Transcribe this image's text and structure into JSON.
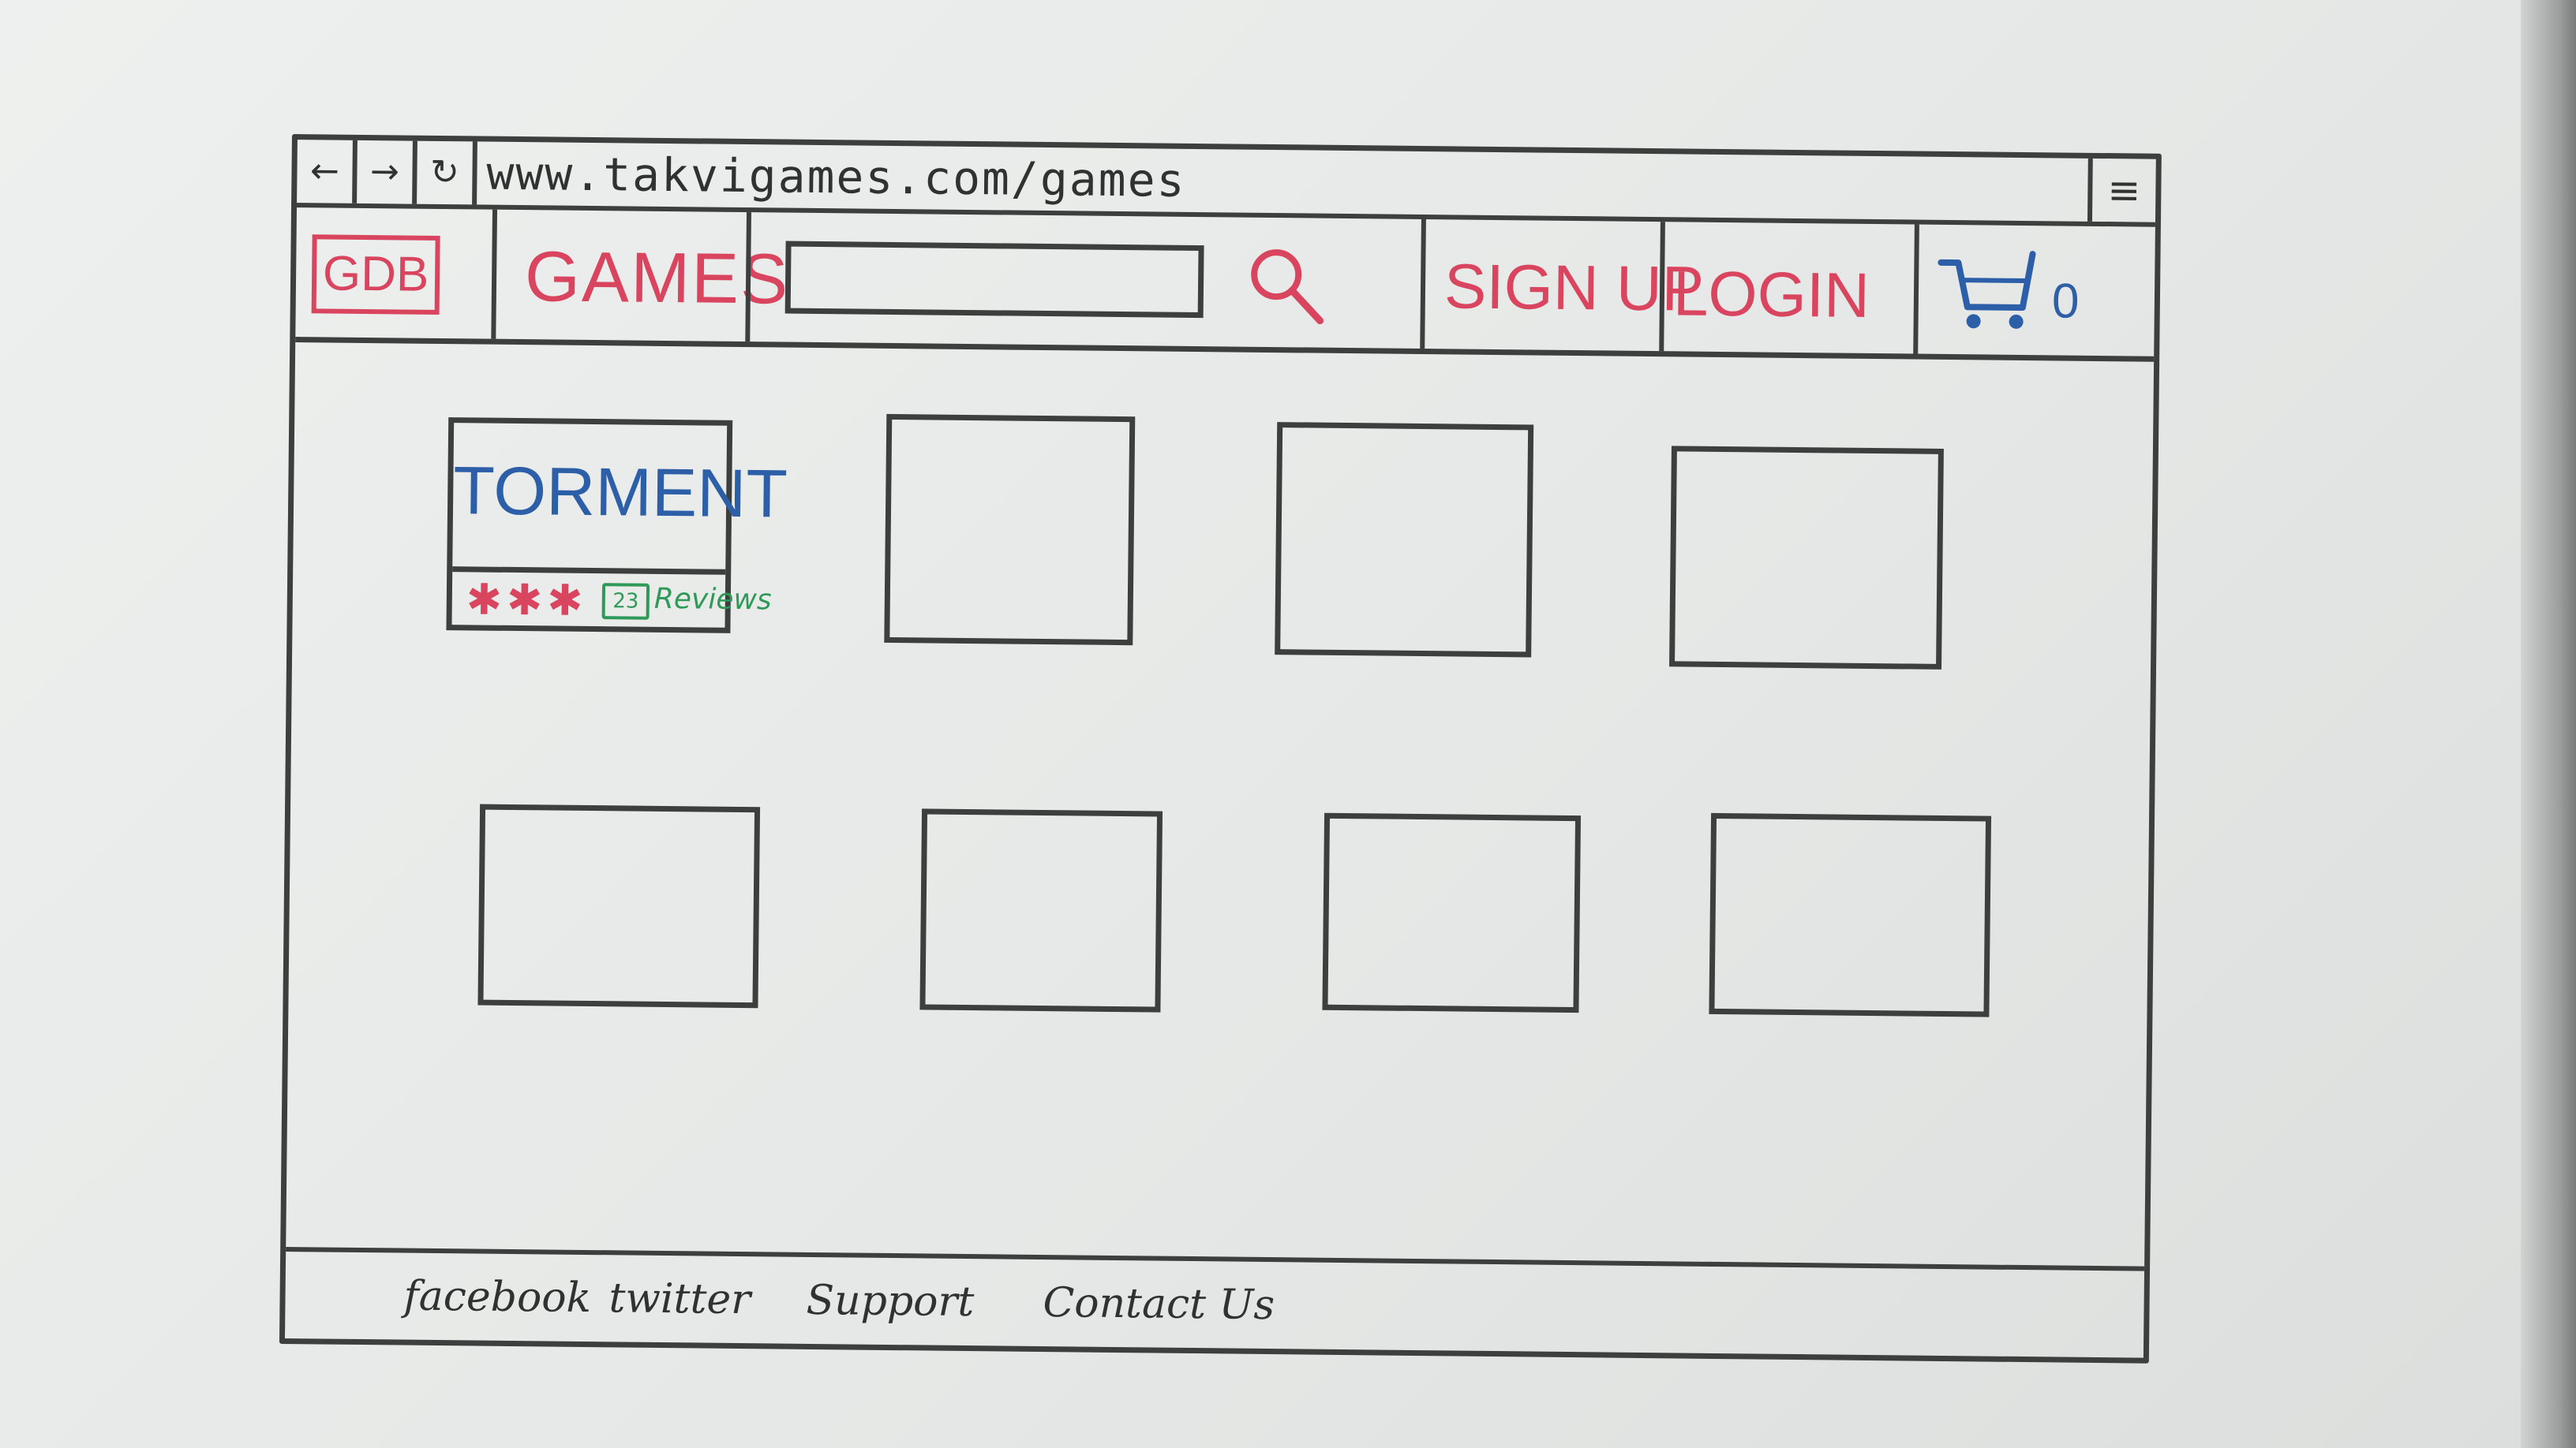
{
  "browser": {
    "back_label": "←",
    "forward_label": "→",
    "reload_label": "↻",
    "url": "www.takvigames.com/games",
    "menu_label": "≡"
  },
  "header": {
    "logo_text": "GDB",
    "games_label": "GAMES",
    "search": {
      "value": "",
      "placeholder": ""
    },
    "signup_label": "SIGN UP",
    "login_label": "LOGIN",
    "cart_count": "0"
  },
  "featured_game": {
    "title": "TORMENT",
    "rating_stars": "✱✱✱",
    "review_count": "23",
    "review_label": "Reviews"
  },
  "grid": {
    "rows": 2,
    "columns": 4
  },
  "footer": {
    "links": [
      "facebook",
      "twitter",
      "Support",
      "Contact Us"
    ]
  },
  "colors": {
    "ink_dark": "#3c3f3e",
    "ink_red": "#d9455e",
    "ink_blue": "#2d5ea8",
    "ink_green": "#2f9a58"
  }
}
